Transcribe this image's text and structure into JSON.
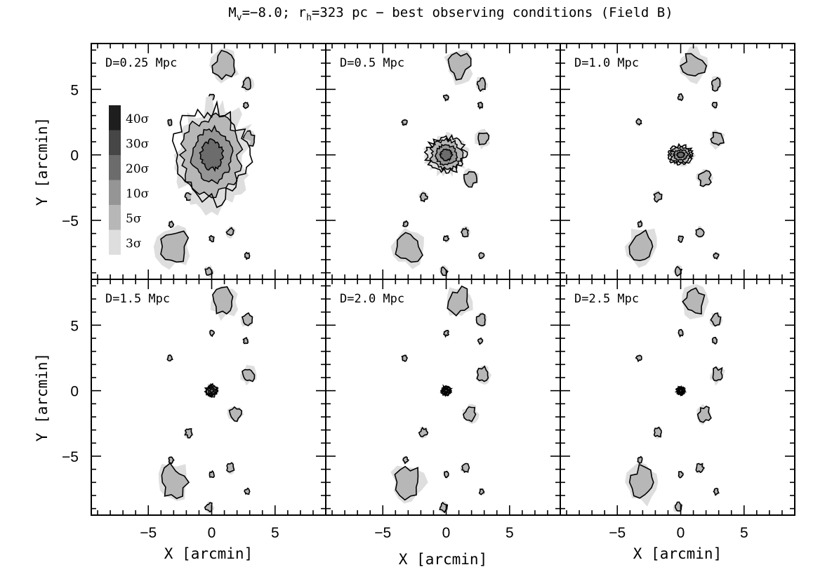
{
  "chart_data": {
    "type": "heatmap",
    "title": "M_v=−8.0; r_h=323 pc − best observing conditions (Field B)",
    "title_parts": {
      "M": "M",
      "v_sub": "v",
      "mag": "=−8.0; r",
      "h_sub": "h",
      "rest": "=323 pc − best observing conditions (Field B)"
    },
    "xlabel": "X [arcmin]",
    "ylabel": "Y [arcmin]",
    "xlim": [
      -9.5,
      9.0
    ],
    "ylim": [
      -9.5,
      8.5
    ],
    "x_ticks": [
      -5,
      0,
      5
    ],
    "y_ticks": [
      -5,
      0,
      5
    ],
    "x_tick_labels": [
      "−5",
      "0",
      "5"
    ],
    "y_tick_labels": [
      "−5",
      "0",
      "5"
    ],
    "grid": false,
    "legend_position": "top-left of first panel",
    "legend": [
      {
        "label": "40σ",
        "color": "#1e1e1e"
      },
      {
        "label": "30σ",
        "color": "#464646"
      },
      {
        "label": "20σ",
        "color": "#6c6c6c"
      },
      {
        "label": "10σ",
        "color": "#959595"
      },
      {
        "label": "5σ",
        "color": "#b7b7b7"
      },
      {
        "label": "3σ",
        "color": "#dedede"
      }
    ],
    "panels": [
      {
        "label": "D=0.25 Mpc",
        "distance_mpc": 0.25,
        "core_extent": [
          6.0,
          8.0
        ],
        "max_level": 3
      },
      {
        "label": "D=0.5 Mpc",
        "distance_mpc": 0.5,
        "core_extent": [
          3.2,
          3.0
        ],
        "max_level": 2
      },
      {
        "label": "D=1.0 Mpc",
        "distance_mpc": 1.0,
        "core_extent": [
          2.0,
          1.6
        ],
        "max_level": 3
      },
      {
        "label": "D=1.5 Mpc",
        "distance_mpc": 1.5,
        "core_extent": [
          1.0,
          1.0
        ],
        "max_level": 3
      },
      {
        "label": "D=2.0 Mpc",
        "distance_mpc": 2.0,
        "core_extent": [
          0.8,
          0.8
        ],
        "max_level": 2
      },
      {
        "label": "D=2.5 Mpc",
        "distance_mpc": 2.5,
        "core_extent": [
          0.7,
          0.7
        ],
        "max_level": 2
      }
    ],
    "field_sources": [
      {
        "x": 1.0,
        "y": 6.8,
        "size": 0.9
      },
      {
        "x": 2.8,
        "y": 5.4,
        "size": 0.4
      },
      {
        "x": 2.9,
        "y": 1.2,
        "size": 0.5
      },
      {
        "x": 1.9,
        "y": -1.8,
        "size": 0.5
      },
      {
        "x": -1.8,
        "y": -3.2,
        "size": 0.3
      },
      {
        "x": -3.0,
        "y": -7.0,
        "size": 1.1
      },
      {
        "x": -3.2,
        "y": -5.3,
        "size": 0.2
      },
      {
        "x": 1.5,
        "y": -5.9,
        "size": 0.3
      },
      {
        "x": -0.2,
        "y": -8.9,
        "size": 0.3
      },
      {
        "x": 0.0,
        "y": 4.4,
        "size": 0.2
      },
      {
        "x": 2.7,
        "y": 3.8,
        "size": 0.2
      },
      {
        "x": 0.0,
        "y": -6.4,
        "size": 0.2
      },
      {
        "x": 2.8,
        "y": -7.7,
        "size": 0.2
      },
      {
        "x": -3.3,
        "y": 2.5,
        "size": 0.2
      }
    ]
  }
}
